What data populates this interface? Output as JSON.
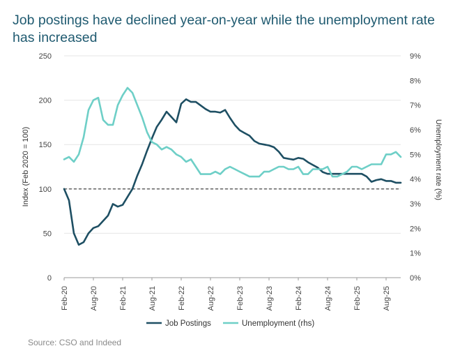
{
  "chart_data": {
    "type": "line",
    "title": "Job postings have declined year-on-year while the unemployment rate has increased",
    "ylabel": "Index (Feb 2020 = 100)",
    "y2label": "Unemployment rate (%)",
    "ylim": [
      0,
      250
    ],
    "yticks": [
      "0",
      "50",
      "100",
      "150",
      "200",
      "250"
    ],
    "y2lim": [
      0,
      9
    ],
    "y2ticks": [
      "0%",
      "1%",
      "2%",
      "3%",
      "4%",
      "5%",
      "6%",
      "7%",
      "8%",
      "9%"
    ],
    "xlim": [
      0,
      69
    ],
    "x_ticks": [
      {
        "m": 0,
        "label": "Feb-20"
      },
      {
        "m": 6,
        "label": "Aug-20"
      },
      {
        "m": 12,
        "label": "Feb-21"
      },
      {
        "m": 18,
        "label": "Aug-21"
      },
      {
        "m": 24,
        "label": "Feb-22"
      },
      {
        "m": 30,
        "label": "Aug-22"
      },
      {
        "m": 36,
        "label": "Feb-23"
      },
      {
        "m": 42,
        "label": "Aug-23"
      },
      {
        "m": 48,
        "label": "Feb-24"
      },
      {
        "m": 54,
        "label": "Aug-24"
      },
      {
        "m": 60,
        "label": "Feb-25"
      },
      {
        "m": 66,
        "label": "Aug-25"
      }
    ],
    "reference_line": {
      "value": 100,
      "style": "dashed"
    },
    "series": [
      {
        "name": "Job Postings",
        "axis": "left",
        "color": "#1e4f63",
        "points": [
          [
            0,
            100
          ],
          [
            1,
            87
          ],
          [
            2,
            50
          ],
          [
            3,
            37
          ],
          [
            4,
            40
          ],
          [
            5,
            50
          ],
          [
            6,
            56
          ],
          [
            7,
            58
          ],
          [
            8,
            64
          ],
          [
            9,
            70
          ],
          [
            10,
            83
          ],
          [
            11,
            80
          ],
          [
            12,
            82
          ],
          [
            13,
            91
          ],
          [
            14,
            100
          ],
          [
            15,
            115
          ],
          [
            16,
            128
          ],
          [
            17,
            143
          ],
          [
            18,
            157
          ],
          [
            19,
            170
          ],
          [
            20,
            178
          ],
          [
            21,
            187
          ],
          [
            22,
            181
          ],
          [
            23,
            175
          ],
          [
            24,
            196
          ],
          [
            25,
            201
          ],
          [
            26,
            198
          ],
          [
            27,
            198
          ],
          [
            28,
            194
          ],
          [
            29,
            190
          ],
          [
            30,
            187
          ],
          [
            31,
            187
          ],
          [
            32,
            186
          ],
          [
            33,
            189
          ],
          [
            34,
            180
          ],
          [
            35,
            172
          ],
          [
            36,
            166
          ],
          [
            37,
            163
          ],
          [
            38,
            160
          ],
          [
            39,
            154
          ],
          [
            40,
            151
          ],
          [
            41,
            150
          ],
          [
            42,
            149
          ],
          [
            43,
            147
          ],
          [
            44,
            142
          ],
          [
            45,
            135
          ],
          [
            46,
            134
          ],
          [
            47,
            133
          ],
          [
            48,
            135
          ],
          [
            49,
            134
          ],
          [
            50,
            130
          ],
          [
            51,
            127
          ],
          [
            52,
            124
          ],
          [
            53,
            119
          ],
          [
            54,
            117
          ],
          [
            55,
            117
          ],
          [
            56,
            117
          ],
          [
            57,
            117
          ],
          [
            58,
            117
          ],
          [
            59,
            117
          ],
          [
            60,
            117
          ],
          [
            61,
            117
          ],
          [
            62,
            114
          ],
          [
            63,
            108
          ],
          [
            64,
            110
          ],
          [
            65,
            111
          ],
          [
            66,
            109
          ],
          [
            67,
            109
          ],
          [
            68,
            107
          ],
          [
            69,
            107
          ]
        ]
      },
      {
        "name": "Unemployment (rhs)",
        "axis": "right",
        "color": "#6ecfc7",
        "points": [
          [
            0,
            4.8
          ],
          [
            1,
            4.9
          ],
          [
            2,
            4.7
          ],
          [
            3,
            5.0
          ],
          [
            4,
            5.7
          ],
          [
            5,
            6.8
          ],
          [
            6,
            7.2
          ],
          [
            7,
            7.3
          ],
          [
            8,
            6.4
          ],
          [
            9,
            6.2
          ],
          [
            10,
            6.2
          ],
          [
            11,
            7.0
          ],
          [
            12,
            7.4
          ],
          [
            13,
            7.7
          ],
          [
            14,
            7.5
          ],
          [
            15,
            7.0
          ],
          [
            16,
            6.5
          ],
          [
            17,
            5.9
          ],
          [
            18,
            5.5
          ],
          [
            19,
            5.4
          ],
          [
            20,
            5.2
          ],
          [
            21,
            5.3
          ],
          [
            22,
            5.2
          ],
          [
            23,
            5.0
          ],
          [
            24,
            4.9
          ],
          [
            25,
            4.7
          ],
          [
            26,
            4.8
          ],
          [
            27,
            4.5
          ],
          [
            28,
            4.2
          ],
          [
            29,
            4.2
          ],
          [
            30,
            4.2
          ],
          [
            31,
            4.3
          ],
          [
            32,
            4.2
          ],
          [
            33,
            4.4
          ],
          [
            34,
            4.5
          ],
          [
            35,
            4.4
          ],
          [
            36,
            4.3
          ],
          [
            37,
            4.2
          ],
          [
            38,
            4.1
          ],
          [
            39,
            4.1
          ],
          [
            40,
            4.1
          ],
          [
            41,
            4.3
          ],
          [
            42,
            4.3
          ],
          [
            43,
            4.4
          ],
          [
            44,
            4.5
          ],
          [
            45,
            4.5
          ],
          [
            46,
            4.4
          ],
          [
            47,
            4.4
          ],
          [
            48,
            4.5
          ],
          [
            49,
            4.2
          ],
          [
            50,
            4.2
          ],
          [
            51,
            4.4
          ],
          [
            52,
            4.4
          ],
          [
            53,
            4.4
          ],
          [
            54,
            4.5
          ],
          [
            55,
            4.1
          ],
          [
            56,
            4.1
          ],
          [
            57,
            4.2
          ],
          [
            58,
            4.3
          ],
          [
            59,
            4.5
          ],
          [
            60,
            4.5
          ],
          [
            61,
            4.4
          ],
          [
            62,
            4.5
          ],
          [
            63,
            4.6
          ],
          [
            64,
            4.6
          ],
          [
            65,
            4.6
          ],
          [
            66,
            5.0
          ],
          [
            67,
            5.0
          ],
          [
            68,
            5.1
          ],
          [
            69,
            4.9
          ]
        ]
      }
    ],
    "legend": {
      "position": "bottom"
    }
  },
  "source": "Source: CSO and Indeed"
}
